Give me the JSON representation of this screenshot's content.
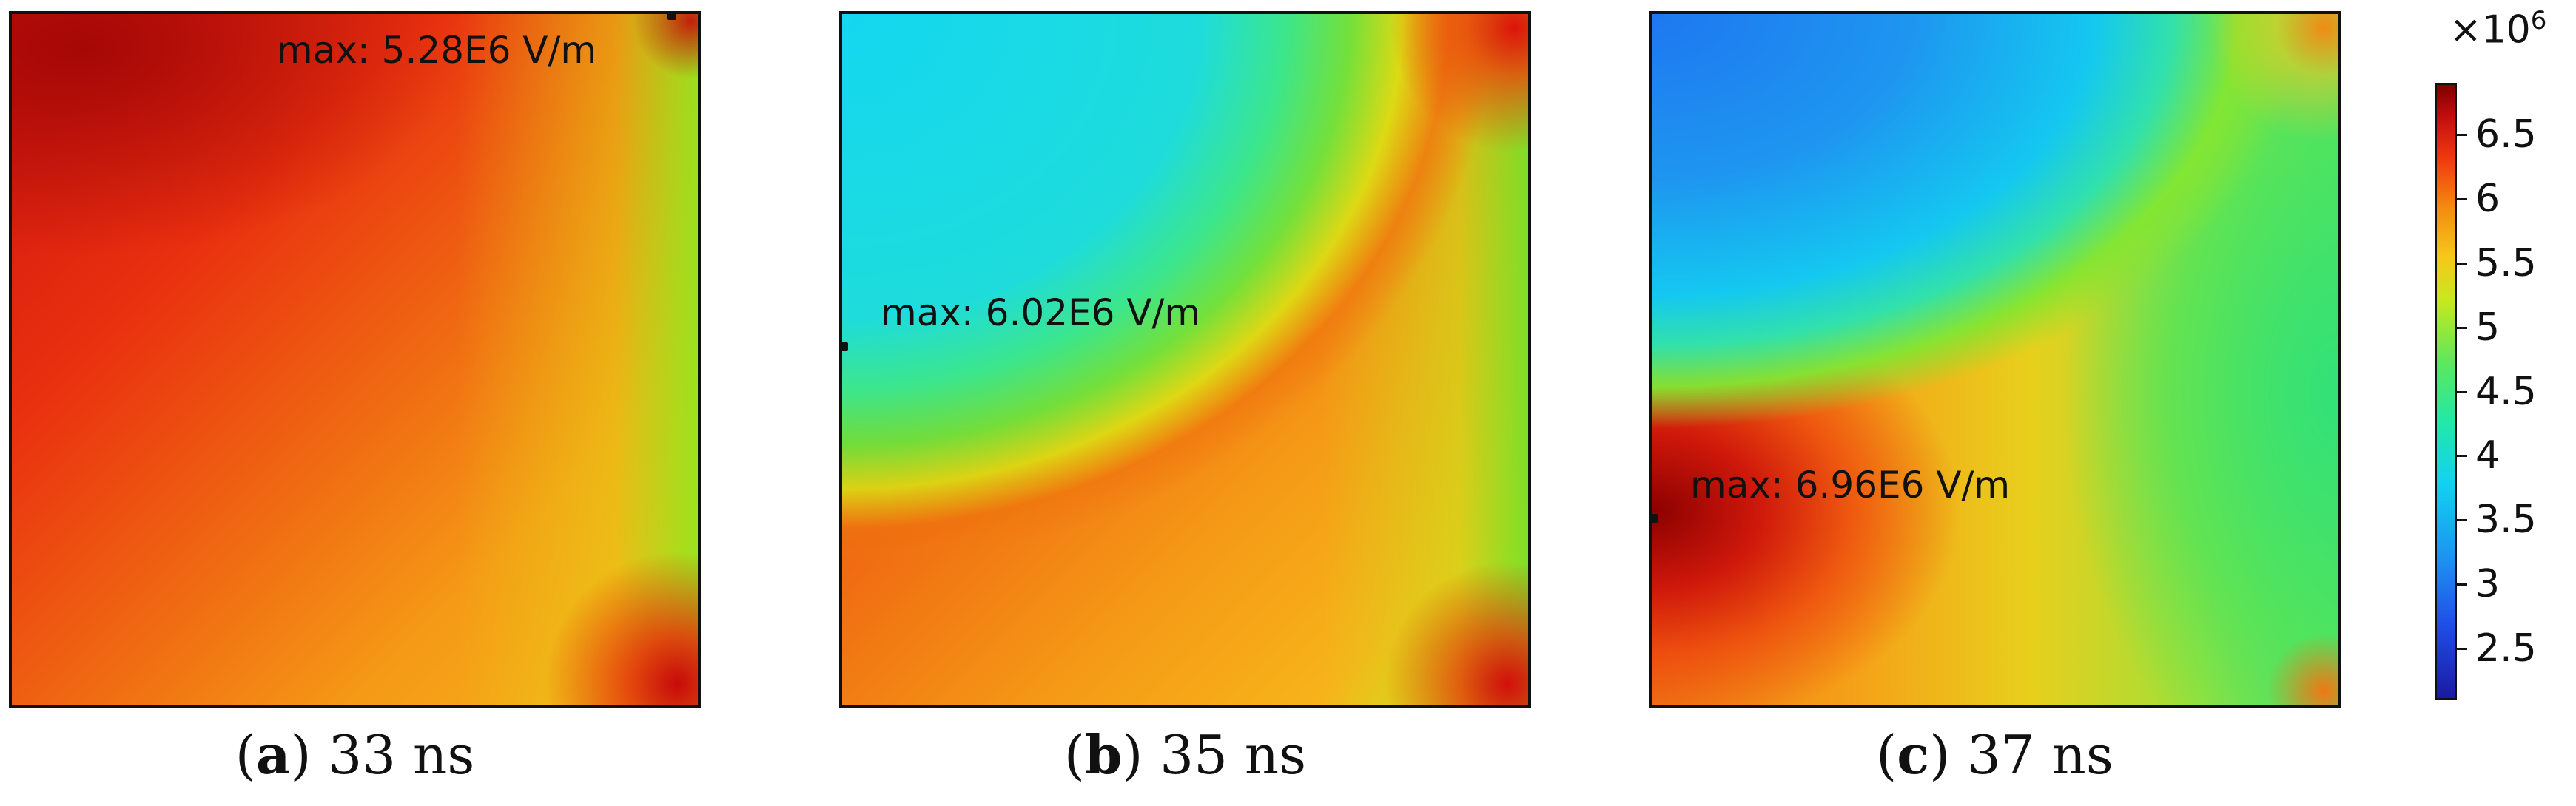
{
  "chart_data": {
    "type": "heatmap",
    "quantity": "electric field magnitude (V/m)",
    "panels": [
      {
        "id": "a",
        "letter": "a",
        "time_label": "33 ns",
        "max_label": "max: 5.28E6 V/m",
        "max_value": 5280000
      },
      {
        "id": "b",
        "letter": "b",
        "time_label": "35 ns",
        "max_label": "max: 6.02E6 V/m",
        "max_value": 6020000
      },
      {
        "id": "c",
        "letter": "c",
        "time_label": "37 ns",
        "max_label": "max: 6.96E6 V/m",
        "max_value": 6960000
      }
    ],
    "colorbar": {
      "multiplier_base": "×10",
      "multiplier_exp": "6",
      "range": [
        2.1,
        6.9
      ],
      "ticks": [
        "6.5",
        "6",
        "5.5",
        "5",
        "4.5",
        "4",
        "3.5",
        "3",
        "2.5"
      ],
      "tick_values": [
        6.5,
        6.0,
        5.5,
        5.0,
        4.5,
        4.0,
        3.5,
        3.0,
        2.5
      ],
      "colormap": "rainbow (blue low → dark red high)",
      "color_low": "#1a1aa0",
      "color_high": "#7d0000"
    }
  }
}
